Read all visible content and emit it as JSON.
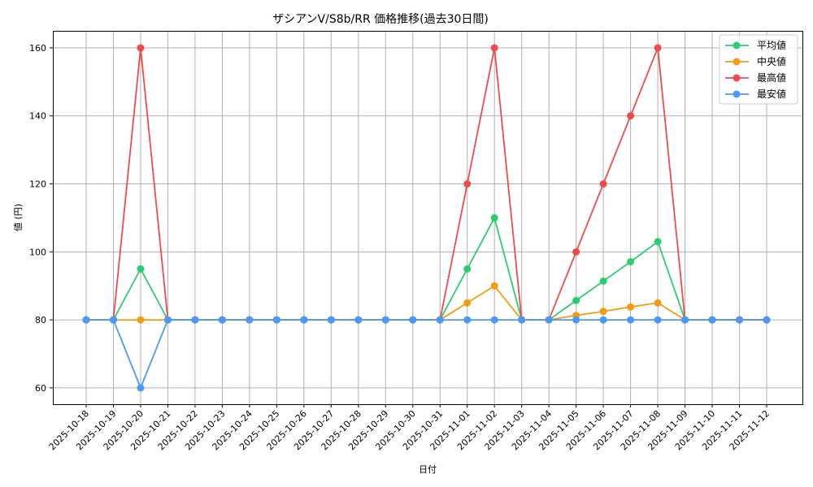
{
  "chart_data": {
    "type": "line",
    "title": "ザシアンV/S8b/RR 価格推移(過去30日間)",
    "xlabel": "日付",
    "ylabel": "値 (円)",
    "ylim": [
      55.2,
      165
    ],
    "yticks": [
      60,
      80,
      100,
      120,
      140,
      160
    ],
    "grid": true,
    "legend_position": "upper right",
    "categories": [
      "2025-10-18",
      "2025-10-19",
      "2025-10-20",
      "2025-10-21",
      "2025-10-22",
      "2025-10-23",
      "2025-10-24",
      "2025-10-25",
      "2025-10-26",
      "2025-10-27",
      "2025-10-28",
      "2025-10-29",
      "2025-10-30",
      "2025-10-31",
      "2025-11-01",
      "2025-11-02",
      "2025-11-03",
      "2025-11-04",
      "2025-11-05",
      "2025-11-06",
      "2025-11-07",
      "2025-11-08",
      "2025-11-09",
      "2025-11-10",
      "2025-11-11",
      "2025-11-12"
    ],
    "series": [
      {
        "name": "平均値",
        "color": "#2ecc71",
        "values": [
          80,
          80,
          95,
          80,
          80,
          80,
          80,
          80,
          80,
          80,
          80,
          80,
          80,
          80,
          95,
          110,
          80,
          80,
          85.7,
          91.4,
          97.1,
          103,
          80,
          80,
          80,
          80
        ]
      },
      {
        "name": "中央値",
        "color": "#f39c12",
        "values": [
          80,
          80,
          80,
          80,
          80,
          80,
          80,
          80,
          80,
          80,
          80,
          80,
          80,
          80,
          85,
          90,
          80,
          80,
          81.3,
          82.5,
          83.8,
          85,
          80,
          80,
          80,
          80
        ]
      },
      {
        "name": "最高値",
        "color": "#ee4c4c",
        "values": [
          80,
          80,
          160,
          80,
          80,
          80,
          80,
          80,
          80,
          80,
          80,
          80,
          80,
          80,
          120,
          160,
          80,
          80,
          100,
          120,
          140,
          160,
          80,
          80,
          80,
          80
        ]
      },
      {
        "name": "最安値",
        "color": "#4a9af5",
        "values": [
          80,
          80,
          60,
          80,
          80,
          80,
          80,
          80,
          80,
          80,
          80,
          80,
          80,
          80,
          80,
          80,
          80,
          80,
          80,
          80,
          80,
          80,
          80,
          80,
          80,
          80
        ]
      }
    ]
  }
}
